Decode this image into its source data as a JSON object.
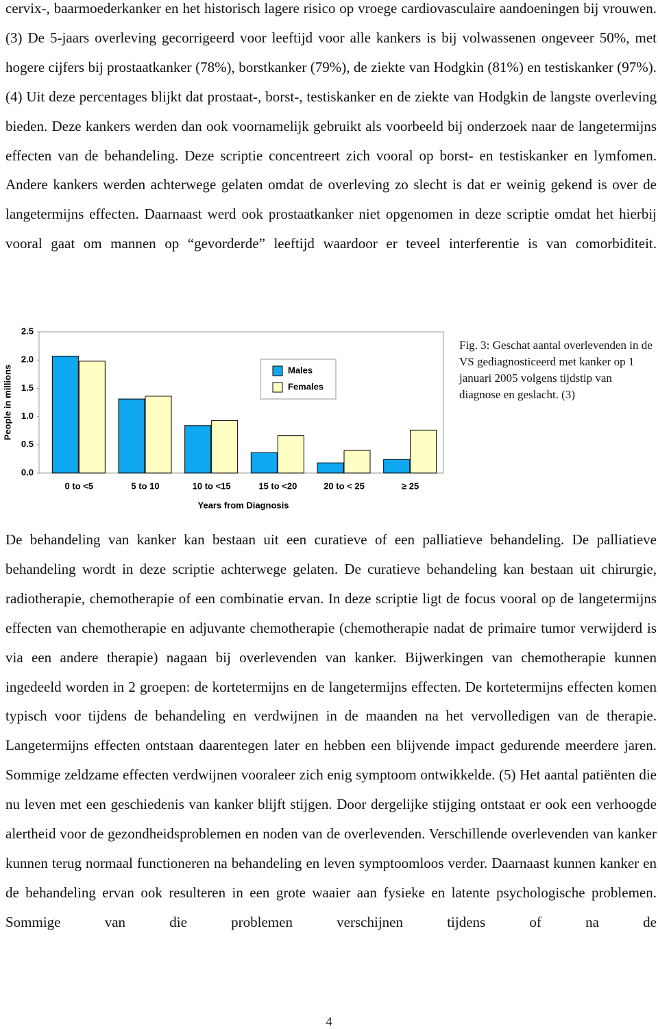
{
  "paragraphs": [
    "cervix-, baarmoederkanker en het historisch lagere risico op vroege cardiovasculaire aandoeningen bij vrouwen. (3) De 5-jaars overleving gecorrigeerd voor leeftijd voor alle kankers is bij volwassenen ongeveer 50%, met hogere cijfers bij prostaatkanker (78%), borstkanker (79%), de ziekte van Hodgkin (81%) en testiskanker (97%). (4) Uit deze percentages blijkt dat prostaat-, borst-, testiskanker en de ziekte van Hodgkin de langste overleving bieden. Deze kankers werden dan ook voornamelijk gebruikt als voorbeeld bij onderzoek naar de langetermijns effecten van de behandeling. Deze scriptie concentreert zich vooral op borst- en testiskanker en lymfomen. Andere kankers werden achterwege gelaten omdat de overleving zo slecht is dat er weinig gekend is over de langetermijns effecten. Daarnaast werd ook prostaatkanker niet opgenomen in deze scriptie omdat het hierbij vooral gaat om mannen op “gevorderde” leeftijd waardoor er teveel interferentie is van comorbiditeit.",
    "De behandeling van kanker kan bestaan uit een curatieve of een palliatieve behandeling. De palliatieve behandeling wordt in deze scriptie achterwege gelaten. De curatieve behandeling kan bestaan uit chirurgie, radiotherapie, chemotherapie of een combinatie ervan. In deze scriptie ligt de focus vooral op de langetermijns effecten van chemotherapie en adjuvante chemotherapie (chemotherapie nadat de primaire tumor verwijderd is via een andere therapie) nagaan bij overlevenden van kanker. Bijwerkingen van chemotherapie kunnen ingedeeld worden in 2 groepen: de kortetermijns en de langetermijns effecten. De kortetermijns effecten komen typisch voor tijdens de behandeling en verdwijnen in de maanden na het vervolledigen van de therapie. Langetermijns effecten ontstaan daarentegen later en hebben een blijvende impact gedurende meerdere jaren. Sommige zeldzame effecten verdwijnen vooraleer zich enig symptoom ontwikkelde. (5) Het aantal patiënten die nu leven met een geschiedenis van kanker blijft stijgen. Door dergelijke stijging ontstaat er ook een verhoogde alertheid voor de gezondheidsproblemen en noden van de overlevenden. Verschillende overlevenden van kanker kunnen terug normaal functioneren na behandeling en leven symptoomloos verder. Daarnaast kunnen kanker en de behandeling ervan ook resulteren in een grote waaier aan fysieke en latente psychologische problemen. Sommige van die problemen verschijnen tijdens of na de"
  ],
  "chart_data": {
    "type": "bar",
    "x_label": "Years from Diagnosis",
    "y_label": "People in millions",
    "categories": [
      "0 to <5",
      "5 to 10",
      "10 to <15",
      "15 to <20",
      "20 to < 25",
      "≥ 25"
    ],
    "series": [
      {
        "name": "Males",
        "color": "#0fa8f0",
        "values": [
          2.07,
          1.31,
          0.84,
          0.36,
          0.18,
          0.24
        ]
      },
      {
        "name": "Females",
        "color": "#ffffc4",
        "values": [
          1.98,
          1.36,
          0.93,
          0.66,
          0.4,
          0.76
        ]
      }
    ],
    "ylim": [
      0,
      2.5
    ],
    "yticks": [
      {
        "value": 0,
        "label": "0.0"
      },
      0.5,
      {
        "value": 1,
        "label": "1.0"
      },
      1.5,
      {
        "value": 2,
        "label": "2.0"
      },
      2.5
    ],
    "legend": "upper-right"
  },
  "caption": "Fig. 3: Geschat aantal overlevenden in de VS gediagnosticeerd met kanker op 1 januari 2005 volgens tijdstip van diagnose en geslacht. (3)",
  "page_number": "4"
}
